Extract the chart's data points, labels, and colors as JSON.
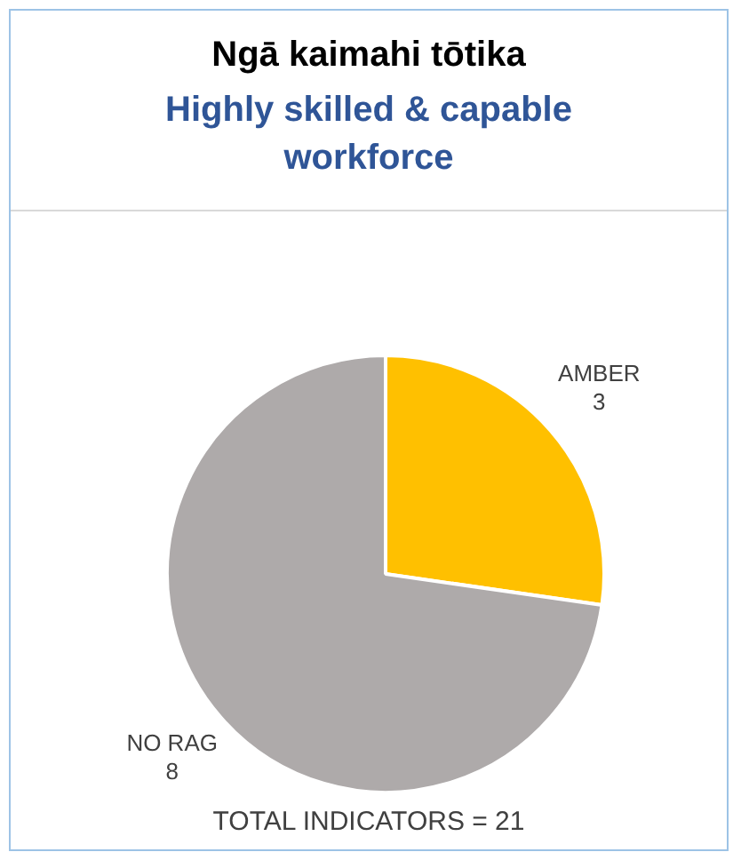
{
  "chart_data": {
    "type": "pie",
    "title": "Ngā kaimahi tōtika",
    "subtitle": "Highly skilled & capable workforce",
    "categories": [
      "AMBER",
      "NO RAG"
    ],
    "values": [
      3,
      8
    ],
    "colors": [
      "#ffc000",
      "#aeaaaa"
    ],
    "data_labels": true,
    "legend": false,
    "annotations": [
      "TOTAL INDICATORS = 21"
    ]
  }
}
